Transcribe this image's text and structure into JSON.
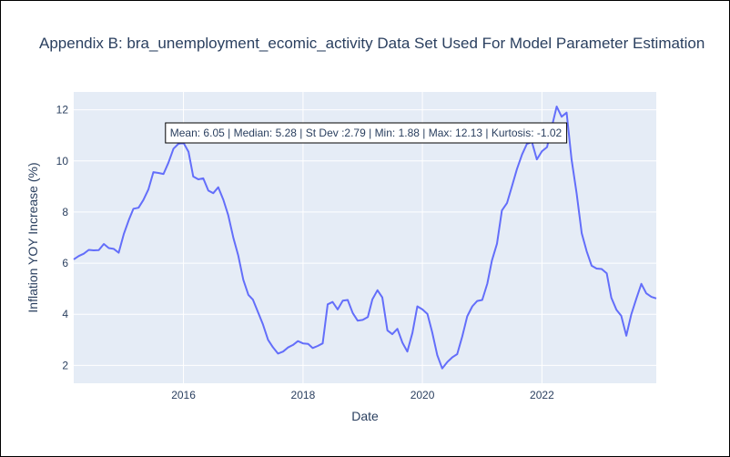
{
  "chart_data": {
    "type": "line",
    "title": "Appendix B: bra_unemployment_ecomic_activity Data Set Used For Model Parameter Estimation",
    "xlabel": "Date",
    "ylabel": "Inflation YOY Increase (%)",
    "xlim": [
      "2014-03-01",
      "2023-12-01"
    ],
    "ylim": [
      1.3,
      12.7
    ],
    "x_ticks": [
      "2016",
      "2018",
      "2020",
      "2022"
    ],
    "y_ticks": [
      2,
      4,
      6,
      8,
      10,
      12
    ],
    "grid": true,
    "colors": {
      "line": "#636efa",
      "plot_bg": "#e5ecf6",
      "grid": "#ffffff",
      "text": "#2a3f5f"
    },
    "annotation": "Mean: 6.05 | Median: 5.28 | St Dev :2.79 | Min: 1.88 | Max: 12.13 | Kurtosis: -1.02",
    "x": [
      "2014-03",
      "2014-04",
      "2014-05",
      "2014-06",
      "2014-07",
      "2014-08",
      "2014-09",
      "2014-10",
      "2014-11",
      "2014-12",
      "2015-01",
      "2015-02",
      "2015-03",
      "2015-04",
      "2015-05",
      "2015-06",
      "2015-07",
      "2015-08",
      "2015-09",
      "2015-10",
      "2015-11",
      "2015-12",
      "2016-01",
      "2016-02",
      "2016-03",
      "2016-04",
      "2016-05",
      "2016-06",
      "2016-07",
      "2016-08",
      "2016-09",
      "2016-10",
      "2016-11",
      "2016-12",
      "2017-01",
      "2017-02",
      "2017-03",
      "2017-04",
      "2017-05",
      "2017-06",
      "2017-07",
      "2017-08",
      "2017-09",
      "2017-10",
      "2017-11",
      "2017-12",
      "2018-01",
      "2018-02",
      "2018-03",
      "2018-04",
      "2018-05",
      "2018-06",
      "2018-07",
      "2018-08",
      "2018-09",
      "2018-10",
      "2018-11",
      "2018-12",
      "2019-01",
      "2019-02",
      "2019-03",
      "2019-04",
      "2019-05",
      "2019-06",
      "2019-07",
      "2019-08",
      "2019-09",
      "2019-10",
      "2019-11",
      "2019-12",
      "2020-01",
      "2020-02",
      "2020-03",
      "2020-04",
      "2020-05",
      "2020-06",
      "2020-07",
      "2020-08",
      "2020-09",
      "2020-10",
      "2020-11",
      "2020-12",
      "2021-01",
      "2021-02",
      "2021-03",
      "2021-04",
      "2021-05",
      "2021-06",
      "2021-07",
      "2021-08",
      "2021-09",
      "2021-10",
      "2021-11",
      "2021-12",
      "2022-01",
      "2022-02",
      "2022-03",
      "2022-04",
      "2022-05",
      "2022-06",
      "2022-07",
      "2022-08",
      "2022-09",
      "2022-10",
      "2022-11",
      "2022-12",
      "2023-01",
      "2023-02",
      "2023-03",
      "2023-04",
      "2023-05",
      "2023-06",
      "2023-07",
      "2023-08",
      "2023-09",
      "2023-10",
      "2023-11",
      "2023-12"
    ],
    "series": [
      {
        "values": [
          6.15,
          6.28,
          6.37,
          6.52,
          6.5,
          6.51,
          6.75,
          6.59,
          6.56,
          6.41,
          7.14,
          7.7,
          8.13,
          8.17,
          8.47,
          8.89,
          9.56,
          9.53,
          9.49,
          9.93,
          10.48,
          10.67,
          10.71,
          10.36,
          9.39,
          9.28,
          9.32,
          8.84,
          8.74,
          8.97,
          8.48,
          7.87,
          6.99,
          6.29,
          5.35,
          4.76,
          4.57,
          4.08,
          3.6,
          3.0,
          2.71,
          2.46,
          2.54,
          2.7,
          2.8,
          2.95,
          2.86,
          2.84,
          2.68,
          2.76,
          2.86,
          4.39,
          4.48,
          4.19,
          4.53,
          4.56,
          4.05,
          3.75,
          3.78,
          3.89,
          4.58,
          4.94,
          4.66,
          3.37,
          3.22,
          3.43,
          2.89,
          2.54,
          3.27,
          4.31,
          4.19,
          4.01,
          3.3,
          2.4,
          1.88,
          2.13,
          2.31,
          2.44,
          3.14,
          3.92,
          4.31,
          4.52,
          4.56,
          5.2,
          6.1,
          6.76,
          8.06,
          8.35,
          8.99,
          9.68,
          10.25,
          10.67,
          10.74,
          10.06,
          10.38,
          10.54,
          11.3,
          12.13,
          11.73,
          11.89,
          10.07,
          8.73,
          7.17,
          6.47,
          5.9,
          5.79,
          5.77,
          5.6,
          4.65,
          4.18,
          3.94,
          3.16,
          3.99,
          4.61,
          5.19,
          4.82,
          4.68,
          4.62
        ]
      }
    ]
  }
}
